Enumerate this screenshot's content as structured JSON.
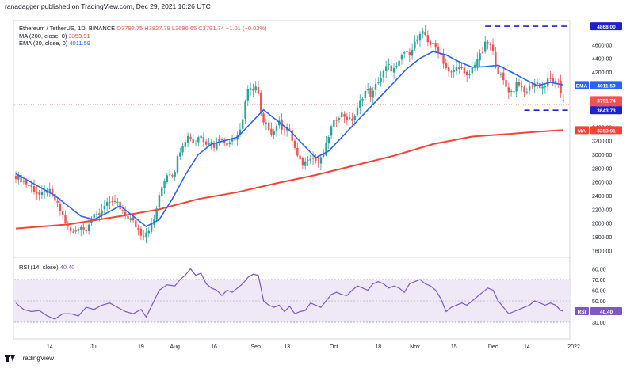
{
  "header": {
    "published": "ranadagger published on TradingView.com, Dec 29, 2021 16:26 UTC"
  },
  "legend": {
    "symbol": "Ethereum / TetherUS, 1D, BINANCE",
    "ohlc": "O3792.75 H3827.78 L3696.65 C3791.74 −1.01 (−0.03%)",
    "ma_label": "MA (200, close, 0)",
    "ma_value": "3353.91",
    "ema_label": "EMA (20, close, 0)",
    "ema_value": "4011.59",
    "rsi_label": "RSI (14, close)",
    "rsi_value": "40.40"
  },
  "axis": {
    "currency": "USDT",
    "price_ticks": [
      "4600.00",
      "4400.00",
      "4200.00",
      "3400.00",
      "3200.00",
      "3000.00",
      "2800.00",
      "2600.00",
      "2400.00",
      "2200.00",
      "2000.00",
      "1800.00",
      "1600.00"
    ],
    "price_tick_values": [
      4600,
      4400,
      4200,
      3400,
      3200,
      3000,
      2800,
      2600,
      2400,
      2200,
      2000,
      1800,
      1600
    ],
    "rsi_ticks": [
      "80.00",
      "70.00",
      "60.00",
      "50.00",
      "30.00"
    ],
    "rsi_tick_values": [
      80,
      70,
      60,
      50,
      30
    ],
    "date_ticks": [
      "14",
      "Jul",
      "19",
      "Aug",
      "16",
      "Sep",
      "13",
      "Oct",
      "18",
      "Nov",
      "15",
      "Dec",
      "14",
      "2022"
    ],
    "date_tick_days": [
      13,
      30,
      48,
      61,
      76,
      92,
      104,
      122,
      139,
      153,
      168,
      183,
      196,
      214
    ]
  },
  "badges": {
    "resistance": "4868.00",
    "ema": "EMA",
    "ema_value": "4011.59",
    "price": "3791.74",
    "countdown": "07:33:18",
    "support": "3643.73",
    "ma": "MA",
    "ma_value": "3353.91",
    "rsi": "RSI",
    "rsi_value": "40.40"
  },
  "colors": {
    "up": "#26a69a",
    "down": "#ef5350",
    "ema": "#2962ff",
    "ma": "#f44336",
    "rsi": "#7e57c2",
    "rsi_band": "#ede7f6",
    "level_line": "#1e22c8"
  },
  "footer": {
    "brand": "TradingView"
  },
  "chart_data": {
    "type": "candlestick",
    "symbol": "Ethereum / TetherUS, 1D, BINANCE",
    "x_unit": "days since Jun 1, 2021",
    "ylim": [
      1500,
      4950
    ],
    "levels": [
      {
        "name": "resistance",
        "value": 4868,
        "x_from_day": 180
      },
      {
        "name": "support",
        "value": 3643.73,
        "x_from_day": 195
      }
    ],
    "anchors": [
      [
        0,
        2700
      ],
      [
        3,
        2620
      ],
      [
        7,
        2500
      ],
      [
        10,
        2390
      ],
      [
        13,
        2480
      ],
      [
        16,
        2300
      ],
      [
        19,
        2060
      ],
      [
        21,
        1880
      ],
      [
        23,
        1850
      ],
      [
        25,
        1980
      ],
      [
        27,
        1880
      ],
      [
        29,
        2050
      ],
      [
        31,
        2100
      ],
      [
        33,
        2150
      ],
      [
        35,
        2320
      ],
      [
        37,
        2250
      ],
      [
        39,
        2330
      ],
      [
        41,
        2150
      ],
      [
        43,
        2100
      ],
      [
        45,
        2040
      ],
      [
        47,
        1930
      ],
      [
        49,
        1820
      ],
      [
        51,
        1900
      ],
      [
        53,
        1980
      ],
      [
        55,
        2300
      ],
      [
        57,
        2600
      ],
      [
        59,
        2750
      ],
      [
        61,
        2700
      ],
      [
        63,
        3030
      ],
      [
        65,
        3200
      ],
      [
        67,
        3280
      ],
      [
        69,
        3150
      ],
      [
        71,
        3300
      ],
      [
        73,
        3180
      ],
      [
        75,
        3200
      ],
      [
        77,
        3100
      ],
      [
        79,
        3300
      ],
      [
        81,
        3100
      ],
      [
        83,
        3250
      ],
      [
        85,
        3250
      ],
      [
        87,
        3400
      ],
      [
        89,
        3900
      ],
      [
        91,
        3950
      ],
      [
        93,
        4000
      ],
      [
        95,
        3450
      ],
      [
        97,
        3420
      ],
      [
        99,
        3300
      ],
      [
        101,
        3480
      ],
      [
        103,
        3370
      ],
      [
        105,
        3400
      ],
      [
        107,
        3150
      ],
      [
        109,
        2900
      ],
      [
        111,
        2850
      ],
      [
        113,
        3000
      ],
      [
        115,
        2920
      ],
      [
        117,
        2880
      ],
      [
        119,
        3050
      ],
      [
        121,
        3350
      ],
      [
        123,
        3500
      ],
      [
        125,
        3600
      ],
      [
        127,
        3550
      ],
      [
        129,
        3480
      ],
      [
        131,
        3600
      ],
      [
        133,
        3820
      ],
      [
        135,
        3950
      ],
      [
        137,
        3850
      ],
      [
        139,
        4050
      ],
      [
        141,
        4150
      ],
      [
        143,
        4300
      ],
      [
        145,
        4230
      ],
      [
        147,
        4270
      ],
      [
        149,
        4500
      ],
      [
        151,
        4450
      ],
      [
        153,
        4600
      ],
      [
        155,
        4700
      ],
      [
        157,
        4780
      ],
      [
        159,
        4620
      ],
      [
        161,
        4580
      ],
      [
        163,
        4500
      ],
      [
        165,
        4300
      ],
      [
        167,
        4150
      ],
      [
        169,
        4250
      ],
      [
        171,
        4300
      ],
      [
        173,
        4100
      ],
      [
        175,
        4200
      ],
      [
        177,
        4380
      ],
      [
        179,
        4450
      ],
      [
        181,
        4650
      ],
      [
        183,
        4550
      ],
      [
        185,
        4250
      ],
      [
        187,
        4100
      ],
      [
        189,
        3950
      ],
      [
        191,
        3900
      ],
      [
        193,
        4100
      ],
      [
        195,
        3880
      ],
      [
        197,
        3950
      ],
      [
        199,
        4050
      ],
      [
        201,
        4000
      ],
      [
        203,
        3980
      ],
      [
        205,
        4100
      ],
      [
        207,
        4050
      ],
      [
        209,
        4000
      ],
      [
        210,
        3792
      ]
    ],
    "ema20": [
      [
        0,
        2720
      ],
      [
        15,
        2400
      ],
      [
        20,
        2250
      ],
      [
        25,
        2100
      ],
      [
        30,
        2050
      ],
      [
        35,
        2150
      ],
      [
        40,
        2250
      ],
      [
        45,
        2100
      ],
      [
        50,
        1950
      ],
      [
        55,
        2050
      ],
      [
        60,
        2350
      ],
      [
        65,
        2700
      ],
      [
        70,
        3000
      ],
      [
        75,
        3150
      ],
      [
        80,
        3200
      ],
      [
        85,
        3250
      ],
      [
        90,
        3450
      ],
      [
        95,
        3650
      ],
      [
        100,
        3500
      ],
      [
        105,
        3350
      ],
      [
        110,
        3150
      ],
      [
        115,
        2950
      ],
      [
        120,
        3050
      ],
      [
        125,
        3250
      ],
      [
        130,
        3450
      ],
      [
        135,
        3650
      ],
      [
        140,
        3850
      ],
      [
        145,
        4050
      ],
      [
        150,
        4250
      ],
      [
        155,
        4400
      ],
      [
        160,
        4500
      ],
      [
        165,
        4450
      ],
      [
        170,
        4350
      ],
      [
        175,
        4270
      ],
      [
        180,
        4280
      ],
      [
        185,
        4300
      ],
      [
        190,
        4200
      ],
      [
        195,
        4100
      ],
      [
        200,
        4000
      ],
      [
        205,
        4050
      ],
      [
        210,
        4012
      ]
    ],
    "ma200": [
      [
        0,
        1920
      ],
      [
        20,
        1980
      ],
      [
        40,
        2100
      ],
      [
        55,
        2200
      ],
      [
        70,
        2350
      ],
      [
        85,
        2450
      ],
      [
        100,
        2580
      ],
      [
        115,
        2700
      ],
      [
        130,
        2840
      ],
      [
        145,
        2980
      ],
      [
        160,
        3150
      ],
      [
        175,
        3260
      ],
      [
        190,
        3300
      ],
      [
        200,
        3330
      ],
      [
        210,
        3354
      ]
    ],
    "rsi14": [
      [
        0,
        48
      ],
      [
        3,
        42
      ],
      [
        6,
        40
      ],
      [
        9,
        41
      ],
      [
        12,
        36
      ],
      [
        15,
        33
      ],
      [
        18,
        38
      ],
      [
        21,
        38
      ],
      [
        24,
        36
      ],
      [
        27,
        44
      ],
      [
        30,
        42
      ],
      [
        33,
        46
      ],
      [
        36,
        48
      ],
      [
        39,
        44
      ],
      [
        42,
        40
      ],
      [
        45,
        38
      ],
      [
        48,
        42
      ],
      [
        50,
        35
      ],
      [
        52,
        45
      ],
      [
        55,
        60
      ],
      [
        58,
        65
      ],
      [
        61,
        64
      ],
      [
        63,
        70
      ],
      [
        65,
        74
      ],
      [
        67,
        80
      ],
      [
        69,
        74
      ],
      [
        71,
        76
      ],
      [
        73,
        66
      ],
      [
        75,
        62
      ],
      [
        77,
        60
      ],
      [
        79,
        55
      ],
      [
        81,
        60
      ],
      [
        83,
        58
      ],
      [
        85,
        62
      ],
      [
        87,
        66
      ],
      [
        89,
        72
      ],
      [
        91,
        75
      ],
      [
        93,
        74
      ],
      [
        95,
        50
      ],
      [
        97,
        46
      ],
      [
        99,
        44
      ],
      [
        101,
        46
      ],
      [
        103,
        40
      ],
      [
        105,
        45
      ],
      [
        107,
        38
      ],
      [
        109,
        40
      ],
      [
        111,
        41
      ],
      [
        113,
        48
      ],
      [
        115,
        46
      ],
      [
        117,
        44
      ],
      [
        119,
        50
      ],
      [
        121,
        56
      ],
      [
        123,
        58
      ],
      [
        125,
        56
      ],
      [
        127,
        55
      ],
      [
        129,
        60
      ],
      [
        131,
        64
      ],
      [
        133,
        62
      ],
      [
        135,
        60
      ],
      [
        137,
        66
      ],
      [
        139,
        68
      ],
      [
        141,
        66
      ],
      [
        143,
        62
      ],
      [
        145,
        64
      ],
      [
        147,
        62
      ],
      [
        149,
        58
      ],
      [
        151,
        66
      ],
      [
        153,
        68
      ],
      [
        155,
        70
      ],
      [
        157,
        66
      ],
      [
        159,
        64
      ],
      [
        161,
        60
      ],
      [
        163,
        52
      ],
      [
        165,
        40
      ],
      [
        167,
        44
      ],
      [
        169,
        46
      ],
      [
        171,
        48
      ],
      [
        173,
        46
      ],
      [
        175,
        50
      ],
      [
        177,
        54
      ],
      [
        179,
        58
      ],
      [
        181,
        62
      ],
      [
        183,
        60
      ],
      [
        185,
        50
      ],
      [
        187,
        44
      ],
      [
        189,
        38
      ],
      [
        191,
        40
      ],
      [
        193,
        42
      ],
      [
        195,
        44
      ],
      [
        197,
        46
      ],
      [
        199,
        50
      ],
      [
        201,
        48
      ],
      [
        203,
        46
      ],
      [
        205,
        48
      ],
      [
        207,
        46
      ],
      [
        209,
        41
      ],
      [
        210,
        40.4
      ]
    ]
  }
}
